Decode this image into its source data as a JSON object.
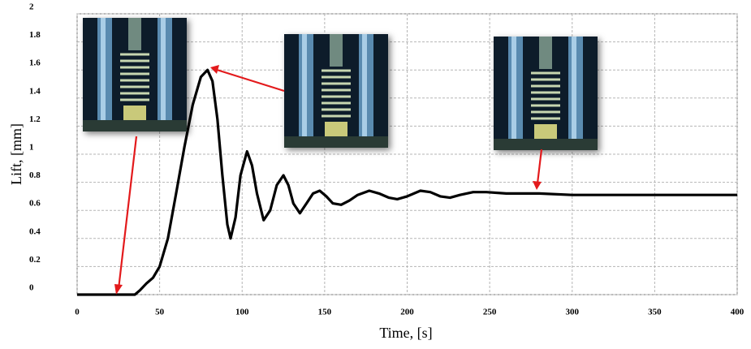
{
  "chart_data": {
    "type": "line",
    "x_label": "Time, [s]",
    "y_label": "Lift, [mm]",
    "xlim": [
      0,
      400
    ],
    "xticks": [
      0,
      50,
      100,
      150,
      200,
      250,
      300,
      350,
      400
    ],
    "ylim": [
      0,
      2
    ],
    "yticks": [
      0,
      0.2,
      0.4,
      0.6,
      0.8,
      1,
      1.2,
      1.4,
      1.6,
      1.8,
      2
    ],
    "grid": true,
    "series": [
      {
        "color": "#000000",
        "x": [
          0,
          20,
          35,
          38,
          42,
          46,
          50,
          55,
          60,
          65,
          70,
          75,
          79,
          82,
          85,
          88,
          91,
          93,
          96,
          99,
          103,
          106,
          109,
          113,
          117,
          121,
          125,
          128,
          131,
          135,
          139,
          143,
          147,
          151,
          155,
          160,
          165,
          170,
          177,
          183,
          189,
          194,
          200,
          208,
          214,
          220,
          226,
          232,
          240,
          248,
          260,
          280,
          300,
          350,
          400
        ],
        "values": [
          0,
          0,
          0,
          0.03,
          0.08,
          0.12,
          0.2,
          0.4,
          0.72,
          1.05,
          1.35,
          1.55,
          1.6,
          1.52,
          1.25,
          0.85,
          0.5,
          0.4,
          0.55,
          0.85,
          1.02,
          0.92,
          0.72,
          0.53,
          0.6,
          0.78,
          0.85,
          0.78,
          0.65,
          0.58,
          0.65,
          0.72,
          0.74,
          0.7,
          0.65,
          0.64,
          0.67,
          0.71,
          0.74,
          0.72,
          0.69,
          0.68,
          0.7,
          0.74,
          0.73,
          0.7,
          0.69,
          0.71,
          0.73,
          0.73,
          0.72,
          0.72,
          0.71,
          0.71,
          0.71
        ]
      }
    ]
  }
}
